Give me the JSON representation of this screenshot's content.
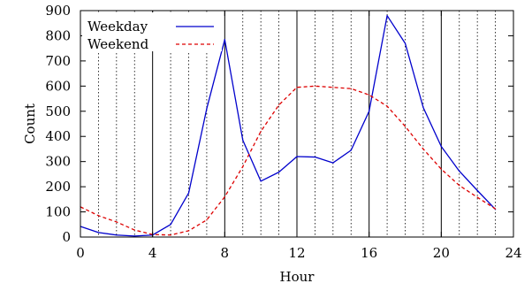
{
  "chart_data": {
    "type": "line",
    "title": "",
    "xlabel": "Hour",
    "ylabel": "Count",
    "xlim": [
      0,
      24
    ],
    "ylim": [
      0,
      900
    ],
    "x_ticks": [
      0,
      4,
      8,
      12,
      16,
      20,
      24
    ],
    "y_ticks": [
      0,
      100,
      200,
      300,
      400,
      500,
      600,
      700,
      800,
      900
    ],
    "x_tick_labels": [
      "0",
      "4",
      "8",
      "12",
      "16",
      "20",
      "24"
    ],
    "y_tick_labels": [
      "0",
      "100",
      "200",
      "300",
      "400",
      "500",
      "600",
      "700",
      "800",
      "900"
    ],
    "grid": "vertical solid at every 4 hours, dotted at every hour",
    "legend_position": "top-left",
    "x": [
      0,
      1,
      2,
      3,
      4,
      5,
      6,
      7,
      8,
      9,
      10,
      11,
      12,
      13,
      14,
      15,
      16,
      17,
      18,
      19,
      20,
      21,
      22,
      23
    ],
    "series": [
      {
        "name": "Weekday",
        "color": "#0000cc",
        "style": "solid",
        "values": [
          42,
          18,
          8,
          4,
          8,
          50,
          175,
          510,
          785,
          385,
          222,
          258,
          320,
          318,
          295,
          345,
          500,
          880,
          770,
          515,
          360,
          262,
          185,
          110
        ]
      },
      {
        "name": "Weekend",
        "color": "#dd0000",
        "style": "dashed",
        "values": [
          120,
          85,
          60,
          28,
          10,
          8,
          25,
          68,
          160,
          280,
          420,
          525,
          595,
          600,
          595,
          590,
          565,
          520,
          440,
          350,
          270,
          205,
          158,
          112
        ]
      }
    ]
  }
}
